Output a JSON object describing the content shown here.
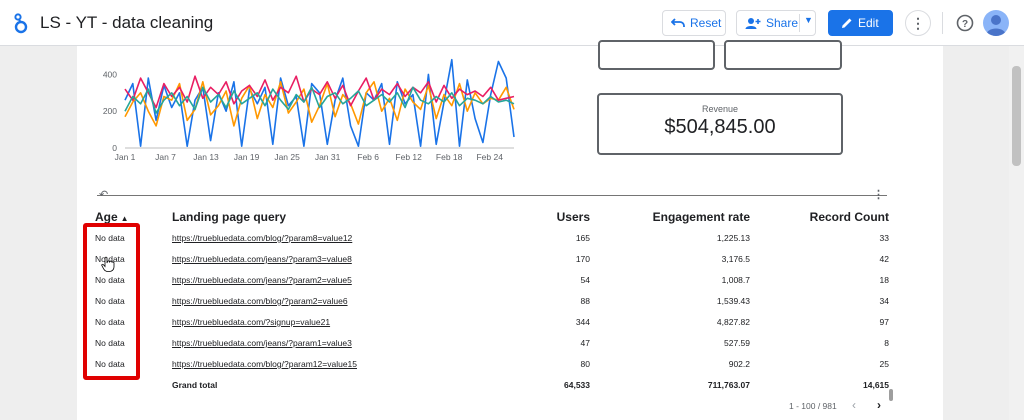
{
  "app": {
    "title": "LS - YT - data cleaning"
  },
  "toolbar": {
    "reset_label": "Reset",
    "share_label": "Share",
    "edit_label": "Edit"
  },
  "icons": {
    "logo": "looker-studio-logo",
    "reset": "undo-icon",
    "share": "person-add-icon",
    "edit": "pencil-icon",
    "more": "more-vert-icon",
    "help": "help-icon",
    "avatar": "account-avatar"
  },
  "colors": {
    "accent": "#1a73e8",
    "highlight": "#e00000",
    "series": [
      "#1a73e8",
      "#ff9800",
      "#e91e63",
      "#26a69a"
    ]
  },
  "kpi": {
    "revenue_label": "Revenue",
    "revenue_value": "$504,845.00"
  },
  "chart_data": {
    "type": "line",
    "x_ticks": [
      "Jan 1",
      "Jan 7",
      "Jan 13",
      "Jan 19",
      "Jan 25",
      "Jan 31",
      "Feb 6",
      "Feb 12",
      "Feb 18",
      "Feb 24"
    ],
    "y_ticks": [
      "0",
      "200",
      "400"
    ],
    "ylim": [
      0,
      500
    ],
    "series": [
      {
        "values": [
          260,
          350,
          10,
          380,
          150,
          340,
          220,
          300,
          10,
          260,
          330,
          40,
          300,
          200,
          360,
          10,
          320,
          240,
          330,
          20,
          380,
          230,
          280,
          10,
          350,
          300,
          20,
          260,
          380,
          120,
          10,
          300,
          260,
          350,
          20,
          360,
          240,
          290,
          10,
          400,
          20,
          250,
          480,
          10,
          370,
          160,
          30,
          290,
          470,
          380,
          60
        ]
      },
      {
        "values": [
          170,
          250,
          300,
          200,
          120,
          280,
          260,
          350,
          150,
          210,
          360,
          180,
          230,
          310,
          120,
          270,
          340,
          160,
          290,
          220,
          360,
          190,
          250,
          320,
          140,
          230,
          350,
          170,
          290,
          240,
          130,
          300,
          360,
          200,
          270,
          150,
          320,
          250,
          210,
          340,
          160,
          290,
          230,
          350,
          200,
          300,
          240,
          270,
          260,
          330,
          210
        ]
      },
      {
        "values": [
          320,
          260,
          380,
          300,
          220,
          350,
          280,
          330,
          250,
          390,
          270,
          330,
          290,
          360,
          240,
          310,
          340,
          280,
          370,
          260,
          330,
          300,
          390,
          250,
          320,
          290,
          360,
          270,
          340,
          230,
          310,
          380,
          260,
          320,
          290,
          350,
          280,
          330,
          300,
          360,
          250,
          340,
          270,
          320,
          290,
          310,
          280,
          330,
          260,
          270,
          280
        ]
      },
      {
        "values": [
          200,
          280,
          240,
          320,
          190,
          260,
          300,
          230,
          280,
          210,
          330,
          250,
          290,
          220,
          310,
          240,
          270,
          300,
          230,
          320,
          260,
          210,
          290,
          250,
          330,
          220,
          280,
          300,
          240,
          270,
          310,
          230,
          260,
          290,
          250,
          300,
          220,
          330,
          260,
          240,
          280,
          250,
          300,
          230,
          270,
          260,
          240,
          280,
          250,
          260,
          240
        ]
      }
    ]
  },
  "table": {
    "headers": {
      "age": "Age",
      "landing": "Landing page query",
      "users": "Users",
      "engagement": "Engagement rate",
      "records": "Record Count"
    },
    "rows": [
      {
        "age": "No data",
        "landing": "https://truebluedata.com/blog/?param8=value12",
        "users": "165",
        "engagement": "1,225.13",
        "records": "33"
      },
      {
        "age": "No data",
        "landing": "https://truebluedata.com/jeans/?param3=value8",
        "users": "170",
        "engagement": "3,176.5",
        "records": "42"
      },
      {
        "age": "No data",
        "landing": "https://truebluedata.com/jeans/?param2=value5",
        "users": "54",
        "engagement": "1,008.7",
        "records": "18"
      },
      {
        "age": "No data",
        "landing": "https://truebluedata.com/blog/?param2=value6",
        "users": "88",
        "engagement": "1,539.43",
        "records": "34"
      },
      {
        "age": "No data",
        "landing": "https://truebluedata.com/?signup=value21",
        "users": "344",
        "engagement": "4,827.82",
        "records": "97"
      },
      {
        "age": "No data",
        "landing": "https://truebluedata.com/jeans/?param1=value3",
        "users": "47",
        "engagement": "527.59",
        "records": "8"
      },
      {
        "age": "No data",
        "landing": "https://truebluedata.com/blog/?param12=value15",
        "users": "80",
        "engagement": "902.2",
        "records": "25"
      }
    ],
    "total": {
      "label": "Grand total",
      "users": "64,533",
      "engagement": "711,763.07",
      "records": "14,615"
    },
    "pagination": "1 - 100 / 981"
  }
}
